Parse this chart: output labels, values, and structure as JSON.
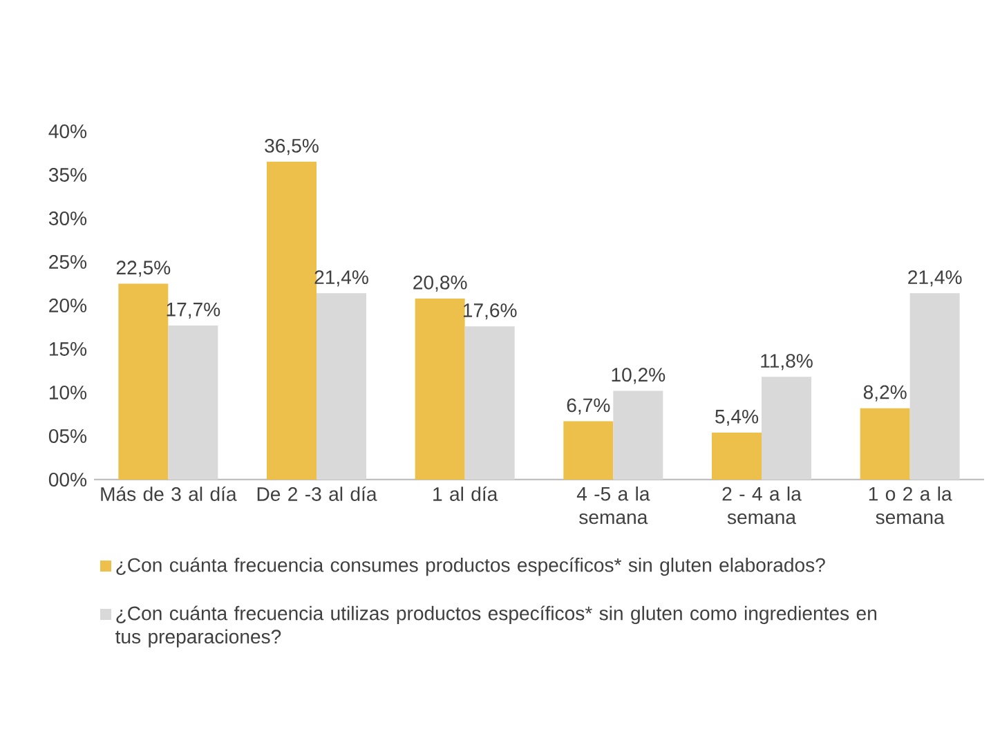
{
  "chart_data": {
    "type": "bar",
    "categories": [
      "Más de 3 al día",
      "De 2 -3 al día",
      "1 al día",
      "4 -5 a la semana",
      "2 - 4 a la semana",
      "1 o 2 a la semana"
    ],
    "series": [
      {
        "name": "¿Con cuánta frecuencia consumes productos específicos* sin gluten elaborados?",
        "color": "#ecc04a",
        "values": [
          22.5,
          36.5,
          20.8,
          6.7,
          5.4,
          8.2
        ],
        "value_labels": [
          "22,5%",
          "36,5%",
          "20,8%",
          "6,7%",
          "5,4%",
          "8,2%"
        ]
      },
      {
        "name": "¿Con cuánta frecuencia utilizas productos específicos* sin gluten como ingredientes en tus preparaciones?",
        "color": "#d9d9d9",
        "values": [
          17.7,
          21.4,
          17.6,
          10.2,
          11.8,
          21.4
        ],
        "value_labels": [
          "17,7%",
          "21,4%",
          "17,6%",
          "10,2%",
          "11,8%",
          "21,4%"
        ]
      }
    ],
    "ylim": [
      0,
      40
    ],
    "yticks": [
      {
        "value": 0,
        "label": "00%"
      },
      {
        "value": 5,
        "label": "05%"
      },
      {
        "value": 10,
        "label": "10%"
      },
      {
        "value": 15,
        "label": "15%"
      },
      {
        "value": 20,
        "label": "20%"
      },
      {
        "value": 25,
        "label": "25%"
      },
      {
        "value": 30,
        "label": "30%"
      },
      {
        "value": 35,
        "label": "35%"
      },
      {
        "value": 40,
        "label": "40%"
      }
    ],
    "legend": "bottom"
  }
}
